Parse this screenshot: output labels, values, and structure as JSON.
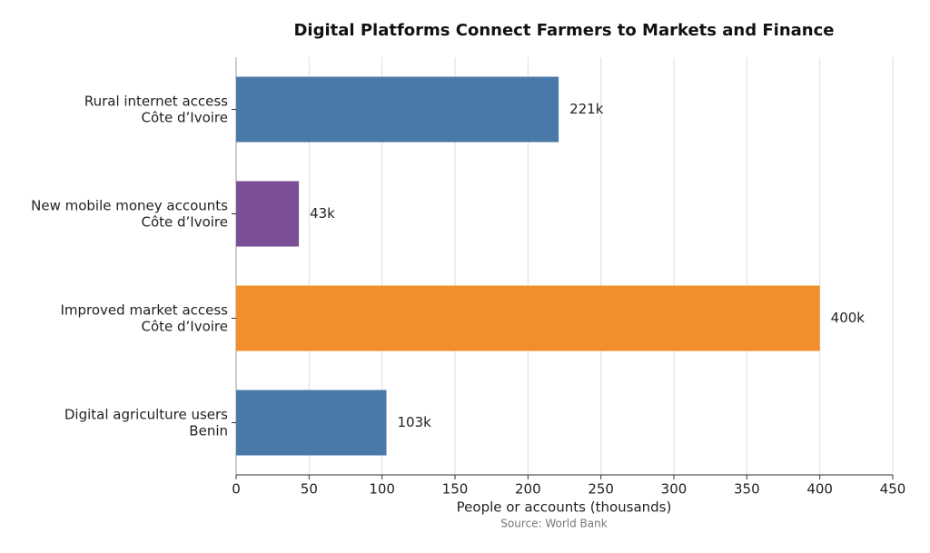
{
  "chart_data": {
    "type": "barh",
    "title": "Digital Platforms Connect Farmers to Markets and Finance",
    "categories": [
      "Rural internet access\nCôte d’Ivoire",
      "New mobile money accounts\nCôte d’Ivoire",
      "Improved market access\nCôte d’Ivoire",
      "Digital agriculture users\nBenin"
    ],
    "values": [
      221,
      43,
      400,
      103
    ],
    "value_labels": [
      "221k",
      "43k",
      "400k",
      "103k"
    ],
    "colors": [
      "#4a78a8",
      "#7a4f96",
      "#f28e2b",
      "#4a78a8"
    ],
    "xlim": [
      0,
      450
    ],
    "xticks": [
      0,
      50,
      100,
      150,
      200,
      250,
      300,
      350,
      400,
      450
    ],
    "xlabel": "People or accounts (thousands)",
    "source": "Source: World Bank",
    "grid": true
  }
}
